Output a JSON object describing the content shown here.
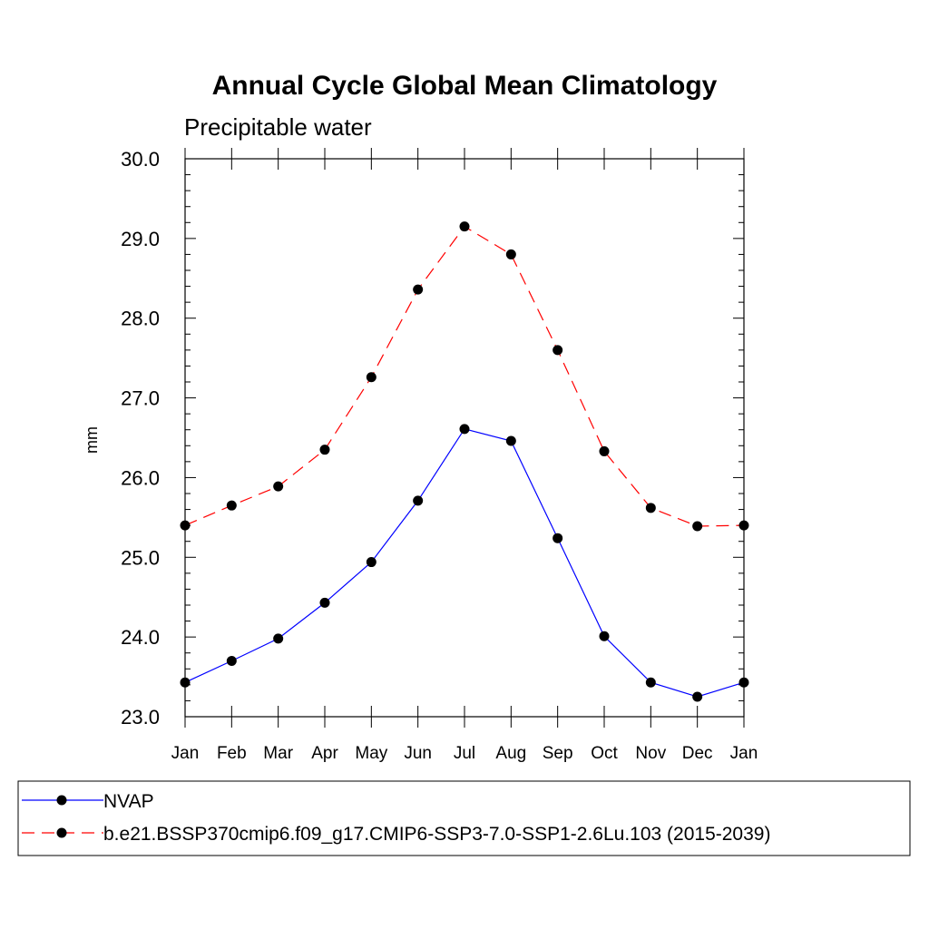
{
  "chart_data": {
    "type": "line",
    "title": "Annual Cycle Global Mean Climatology",
    "subtitle": "Precipitable water",
    "xlabel": "",
    "ylabel": "mm",
    "categories": [
      "Jan",
      "Feb",
      "Mar",
      "Apr",
      "May",
      "Jun",
      "Jul",
      "Aug",
      "Sep",
      "Oct",
      "Nov",
      "Dec",
      "Jan"
    ],
    "ylim": [
      23.0,
      30.0
    ],
    "yticks": [
      "23.0",
      "24.0",
      "25.0",
      "26.0",
      "27.0",
      "28.0",
      "29.0",
      "30.0"
    ],
    "grid": false,
    "legend_position": "bottom",
    "series": [
      {
        "name": "NVAP",
        "color": "#0000ff",
        "line_style": "solid",
        "marker": "filled-circle",
        "values": [
          23.43,
          23.7,
          23.98,
          24.43,
          24.94,
          25.71,
          26.61,
          26.46,
          25.24,
          24.01,
          23.43,
          23.25,
          23.43
        ]
      },
      {
        "name": "b.e21.BSSP370cmip6.f09_g17.CMIP6-SSP3-7.0-SSP1-2.6Lu.103 (2015-2039)",
        "color": "#ff0000",
        "line_style": "dashed",
        "marker": "filled-circle",
        "values": [
          25.4,
          25.65,
          25.89,
          26.35,
          27.26,
          28.36,
          29.15,
          28.8,
          27.6,
          26.33,
          25.62,
          25.39,
          25.4
        ]
      }
    ]
  }
}
